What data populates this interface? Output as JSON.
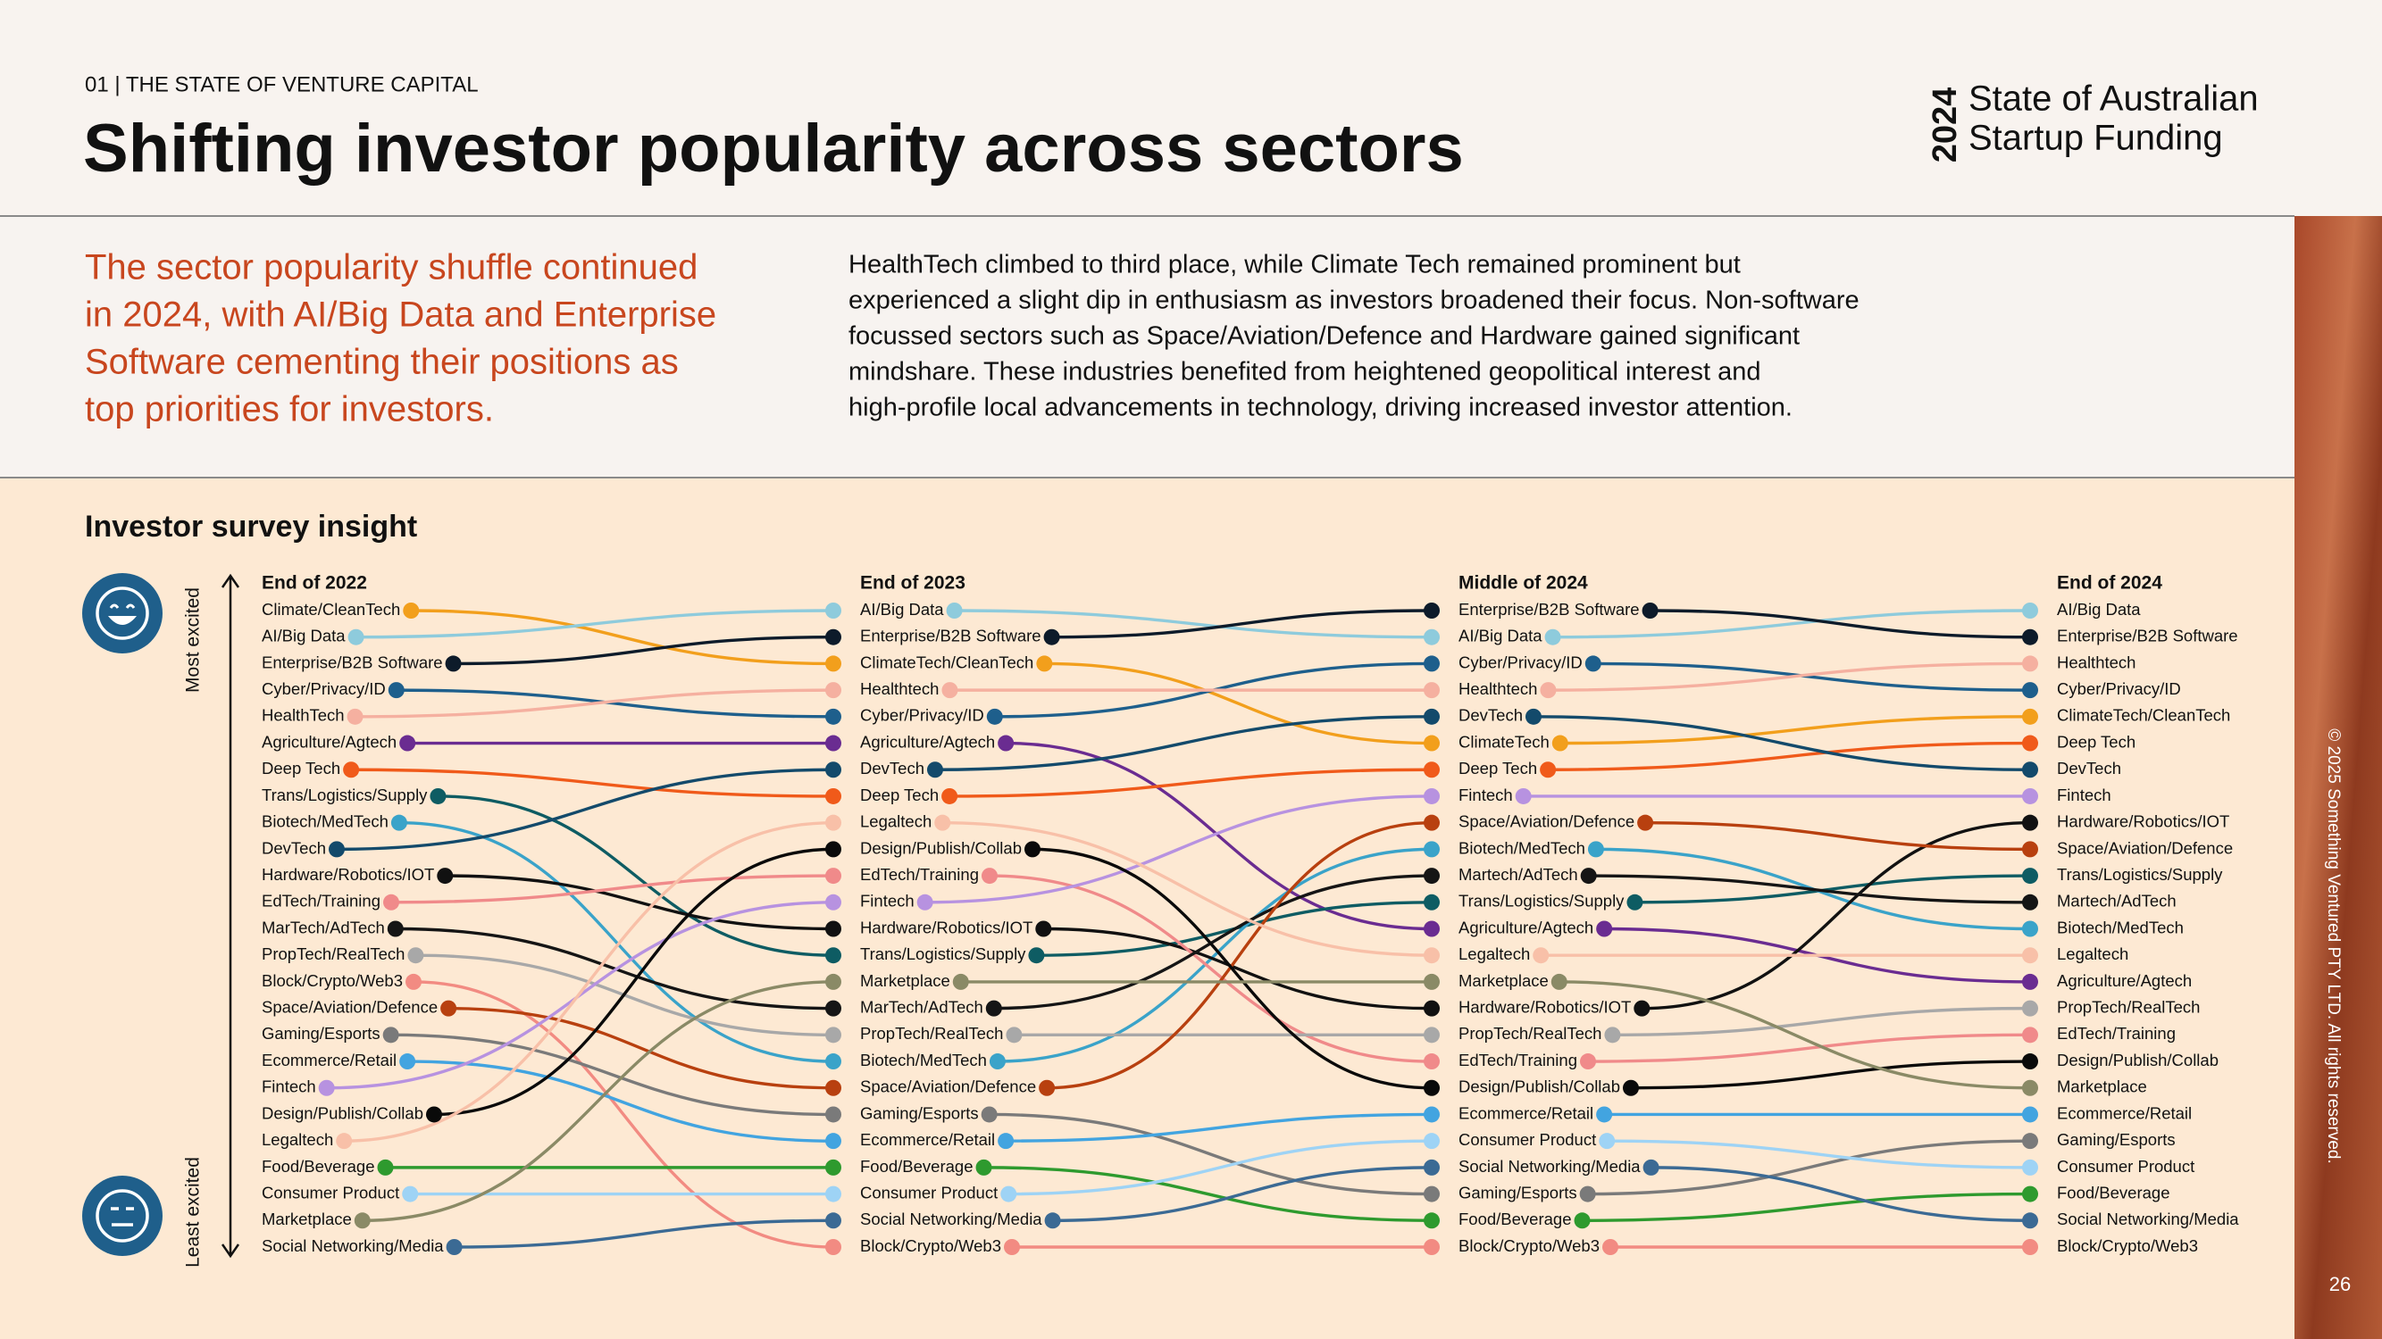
{
  "header": {
    "section": "01  |  THE STATE OF VENTURE CAPITAL",
    "title": "Shifting investor popularity across sectors",
    "brand_year": "2024",
    "brand_lines": [
      "State of Australian",
      "Startup Funding"
    ]
  },
  "intro": {
    "highlight_lines": [
      "The sector popularity shuffle continued",
      "in 2024, with AI/Big Data and Enterprise",
      "Software cementing their positions as",
      "top priorities for investors."
    ],
    "body_lines": [
      "HealthTech climbed to third place, while Climate Tech remained prominent but",
      "experienced a slight dip in enthusiasm as investors broadened their focus. Non-software",
      "focussed sectors such as Space/Aviation/Defence and Hardware gained significant",
      "mindshare. These industries benefited from heightened geopolitical interest and",
      "high-profile local advancements in technology, driving increased investor attention."
    ]
  },
  "chart_data": {
    "type": "bump",
    "title": "Investor survey insight",
    "y_label_top": "Most excited",
    "y_label_bottom": "Least excited",
    "categories": [
      "End of 2022",
      "End of 2023",
      "Middle of 2024",
      "End of 2024"
    ],
    "ylim": [
      25,
      1
    ],
    "series": [
      {
        "labels": [
          "Climate/CleanTech",
          "ClimateTech/CleanTech",
          "ClimateTech",
          "ClimateTech/CleanTech"
        ],
        "color": "#f29f1c",
        "values": [
          1,
          3,
          6,
          5
        ]
      },
      {
        "labels": [
          "AI/Big Data",
          "AI/Big Data",
          "AI/Big Data",
          "AI/Big Data"
        ],
        "color": "#8ecbdc",
        "values": [
          2,
          1,
          2,
          1
        ]
      },
      {
        "labels": [
          "Enterprise/B2B Software",
          "Enterprise/B2B Software",
          "Enterprise/B2B Software",
          "Enterprise/B2B Software"
        ],
        "color": "#0d1b2a",
        "values": [
          3,
          2,
          1,
          2
        ]
      },
      {
        "labels": [
          "Cyber/Privacy/ID",
          "Cyber/Privacy/ID",
          "Cyber/Privacy/ID",
          "Cyber/Privacy/ID"
        ],
        "color": "#1e5f8c",
        "values": [
          4,
          5,
          3,
          4
        ]
      },
      {
        "labels": [
          "HealthTech",
          "Healthtech",
          "Healthtech",
          "Healthtech"
        ],
        "color": "#f5b0a0",
        "values": [
          5,
          4,
          4,
          3
        ]
      },
      {
        "labels": [
          "Agriculture/Agtech",
          "Agriculture/Agtech",
          "Agriculture/Agtech",
          "Agriculture/Agtech"
        ],
        "color": "#6a2c91",
        "values": [
          6,
          6,
          13,
          15
        ]
      },
      {
        "labels": [
          "Deep Tech",
          "Deep Tech",
          "Deep Tech",
          "Deep Tech"
        ],
        "color": "#f05a1a",
        "values": [
          7,
          8,
          7,
          6
        ]
      },
      {
        "labels": [
          "Trans/Logistics/Supply",
          "Trans/Logistics/Supply",
          "Trans/Logistics/Supply",
          "Trans/Logistics/Supply"
        ],
        "color": "#0e5c63",
        "values": [
          8,
          14,
          12,
          11
        ]
      },
      {
        "labels": [
          "Biotech/MedTech",
          "Biotech/MedTech",
          "Biotech/MedTech",
          "Biotech/MedTech"
        ],
        "color": "#3aa3c9",
        "values": [
          9,
          18,
          10,
          13
        ]
      },
      {
        "labels": [
          "DevTech",
          "DevTech",
          "DevTech",
          "DevTech"
        ],
        "color": "#134a6b",
        "values": [
          10,
          7,
          5,
          7
        ]
      },
      {
        "labels": [
          "Hardware/Robotics/IOT",
          "Hardware/Robotics/IOT",
          "Hardware/Robotics/IOT",
          "Hardware/Robotics/IOT"
        ],
        "color": "#111111",
        "values": [
          11,
          13,
          16,
          9
        ]
      },
      {
        "labels": [
          "EdTech/Training",
          "EdTech/Training",
          "EdTech/Training",
          "EdTech/Training"
        ],
        "color": "#f08a8a",
        "values": [
          12,
          11,
          18,
          17
        ]
      },
      {
        "labels": [
          "MarTech/AdTech",
          "MarTech/AdTech",
          "Martech/AdTech",
          "Martech/AdTech"
        ],
        "color": "#151515",
        "values": [
          13,
          16,
          11,
          12
        ]
      },
      {
        "labels": [
          "PropTech/RealTech",
          "PropTech/RealTech",
          "PropTech/RealTech",
          "PropTech/RealTech"
        ],
        "color": "#a8a8a8",
        "values": [
          14,
          17,
          17,
          16
        ]
      },
      {
        "labels": [
          "Block/Crypto/Web3",
          "Block/Crypto/Web3",
          "Block/Crypto/Web3",
          "Block/Crypto/Web3"
        ],
        "color": "#f28b82",
        "values": [
          15,
          25,
          25,
          25
        ]
      },
      {
        "labels": [
          "Space/Aviation/Defence",
          "Space/Aviation/Defence",
          "Space/Aviation/Defence",
          "Space/Aviation/Defence"
        ],
        "color": "#b8400f",
        "values": [
          16,
          19,
          9,
          10
        ]
      },
      {
        "labels": [
          "Gaming/Esports",
          "Gaming/Esports",
          "Gaming/Esports",
          "Gaming/Esports"
        ],
        "color": "#7a7a7a",
        "values": [
          17,
          20,
          23,
          21
        ]
      },
      {
        "labels": [
          "Ecommerce/Retail",
          "Ecommerce/Retail",
          "Ecommerce/Retail",
          "Ecommerce/Retail"
        ],
        "color": "#42a4e0",
        "values": [
          18,
          21,
          20,
          20
        ]
      },
      {
        "labels": [
          "Fintech",
          "Fintech",
          "Fintech",
          "Fintech"
        ],
        "color": "#b792e0",
        "values": [
          19,
          12,
          8,
          8
        ]
      },
      {
        "labels": [
          "Design/Publish/Collab",
          "Design/Publish/Collab",
          "Design/Publish/Collab",
          "Design/Publish/Collab"
        ],
        "color": "#0a0a0a",
        "values": [
          20,
          10,
          19,
          18
        ]
      },
      {
        "labels": [
          "Legaltech",
          "Legaltech",
          "Legaltech",
          "Legaltech"
        ],
        "color": "#f8c0a8",
        "values": [
          21,
          9,
          14,
          14
        ]
      },
      {
        "labels": [
          "Food/Beverage",
          "Food/Beverage",
          "Food/Beverage",
          "Food/Beverage"
        ],
        "color": "#2e9a2e",
        "values": [
          22,
          22,
          24,
          23
        ]
      },
      {
        "labels": [
          "Consumer Product",
          "Consumer Product",
          "Consumer Product",
          "Consumer Product"
        ],
        "color": "#9ed3f5",
        "values": [
          23,
          23,
          21,
          22
        ]
      },
      {
        "labels": [
          "Marketplace",
          "Marketplace",
          "Marketplace",
          "Marketplace"
        ],
        "color": "#8a8a66",
        "values": [
          24,
          15,
          15,
          19
        ]
      },
      {
        "labels": [
          "Social Networking/Media",
          "Social Networking/Media",
          "Social Networking/Media",
          "Social Networking/Media"
        ],
        "color": "#3b6a94",
        "values": [
          25,
          24,
          22,
          24
        ]
      }
    ]
  },
  "footer": {
    "copyright": "© 2025 Something Ventured PTY LTD. All rights reserved.",
    "page": 26
  }
}
